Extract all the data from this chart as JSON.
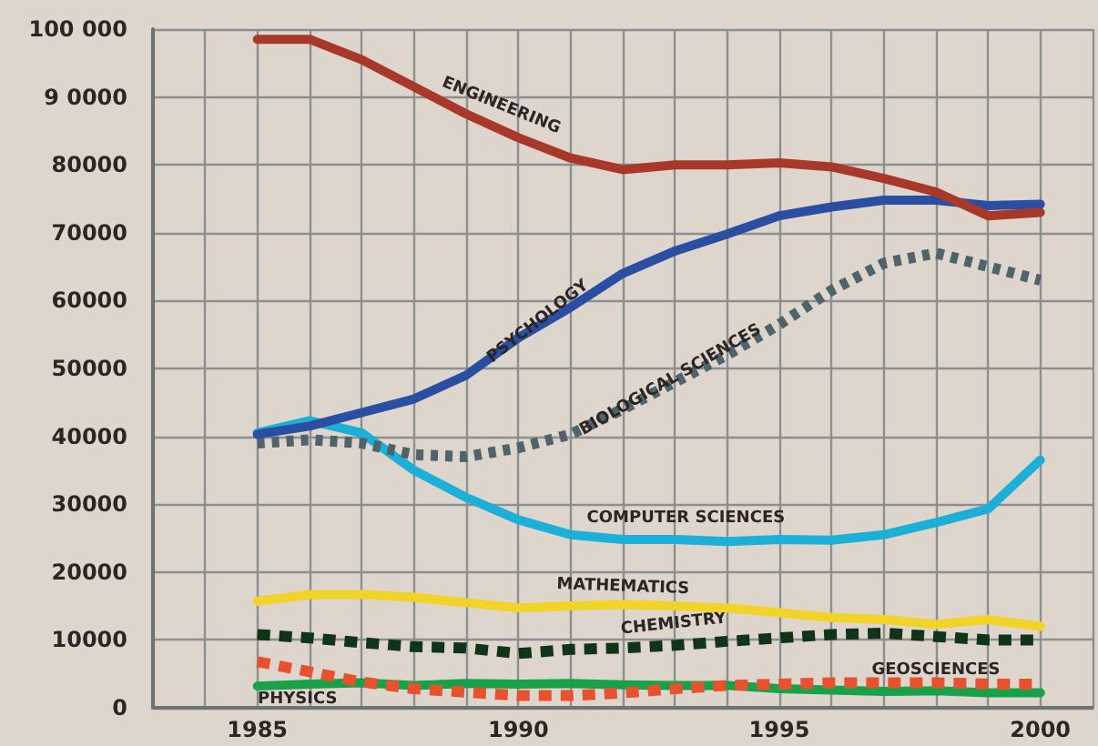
{
  "chart_data": {
    "type": "line",
    "x": [
      1985,
      1986,
      1987,
      1988,
      1989,
      1990,
      1991,
      1992,
      1993,
      1994,
      1995,
      1996,
      1997,
      1998,
      1999,
      2000
    ],
    "series": [
      {
        "name": "ENGINEERING",
        "color": "#a8382a",
        "line_style": "solid",
        "values": [
          98500,
          98500,
          95500,
          91500,
          87500,
          84000,
          81000,
          79300,
          80000,
          80000,
          80300,
          79700,
          78000,
          76000,
          72500,
          73000
        ]
      },
      {
        "name": "PSYCHOLOGY",
        "color": "#2a4ea2",
        "line_style": "solid",
        "values": [
          40300,
          41500,
          43500,
          45500,
          49000,
          54500,
          59000,
          64000,
          67300,
          69800,
          72500,
          73800,
          74800,
          74800,
          74000,
          74200
        ]
      },
      {
        "name": "BIOLOGICAL SCIENCES",
        "color": "#4e636a",
        "line_style": "dotted",
        "values": [
          39000,
          39500,
          39000,
          37300,
          37000,
          38300,
          40300,
          44000,
          48000,
          52000,
          56500,
          61500,
          65500,
          67000,
          65000,
          63000
        ]
      },
      {
        "name": "COMPUTER SCIENCES",
        "color": "#1cb0d8",
        "line_style": "solid",
        "values": [
          40500,
          42300,
          40500,
          35000,
          31000,
          27700,
          25500,
          24800,
          24800,
          24500,
          24800,
          24700,
          25500,
          27300,
          29300,
          36500
        ]
      },
      {
        "name": "MATHEMATICS",
        "color": "#f2d327",
        "line_style": "solid",
        "values": [
          15700,
          16700,
          16700,
          16300,
          15500,
          14700,
          15000,
          15200,
          15000,
          14700,
          14000,
          13300,
          13000,
          12300,
          13000,
          12000
        ]
      },
      {
        "name": "CHEMISTRY",
        "color": "#0f3418",
        "line_style": "dashed",
        "values": [
          10800,
          10300,
          9600,
          9000,
          8800,
          8000,
          8600,
          8800,
          9200,
          9800,
          10300,
          10800,
          11000,
          10500,
          10000,
          10000
        ]
      },
      {
        "name": "GEOSCIENCES",
        "color": "#e8512e",
        "line_style": "dashed",
        "values": [
          6800,
          5300,
          3800,
          2800,
          2300,
          1800,
          1800,
          2200,
          2800,
          3300,
          3500,
          3700,
          3700,
          3700,
          3500,
          3500
        ]
      },
      {
        "name": "PHYSICS",
        "color": "#17a24a",
        "line_style": "solid",
        "values": [
          3200,
          3500,
          3700,
          3300,
          3600,
          3500,
          3600,
          3400,
          3300,
          3300,
          2800,
          2600,
          2400,
          2500,
          2200,
          2200
        ]
      }
    ],
    "xlim": [
      1983,
      2001
    ],
    "xticks": [
      {
        "value": 1983,
        "label": null
      },
      {
        "value": 1984,
        "label": null
      },
      1985,
      {
        "value": 1986,
        "label": null
      },
      {
        "value": 1987,
        "label": null
      },
      {
        "value": 1988,
        "label": null
      },
      {
        "value": 1989,
        "label": null
      },
      1990,
      {
        "value": 1991,
        "label": null
      },
      {
        "value": 1992,
        "label": null
      },
      {
        "value": 1993,
        "label": null
      },
      {
        "value": 1994,
        "label": null
      },
      1995,
      {
        "value": 1996,
        "label": null
      },
      {
        "value": 1997,
        "label": null
      },
      {
        "value": 1998,
        "label": null
      },
      {
        "value": 1999,
        "label": null
      },
      2000,
      {
        "value": 2001,
        "label": null
      }
    ],
    "ylim": [
      0,
      100000
    ],
    "yticks": [
      0,
      10000,
      20000,
      30000,
      40000,
      50000,
      60000,
      70000,
      80000,
      {
        "value": 90000,
        "label": "9 0000"
      },
      {
        "value": 100000,
        "label": "100 000"
      }
    ],
    "grid": true,
    "legend": false,
    "marker": "none"
  }
}
